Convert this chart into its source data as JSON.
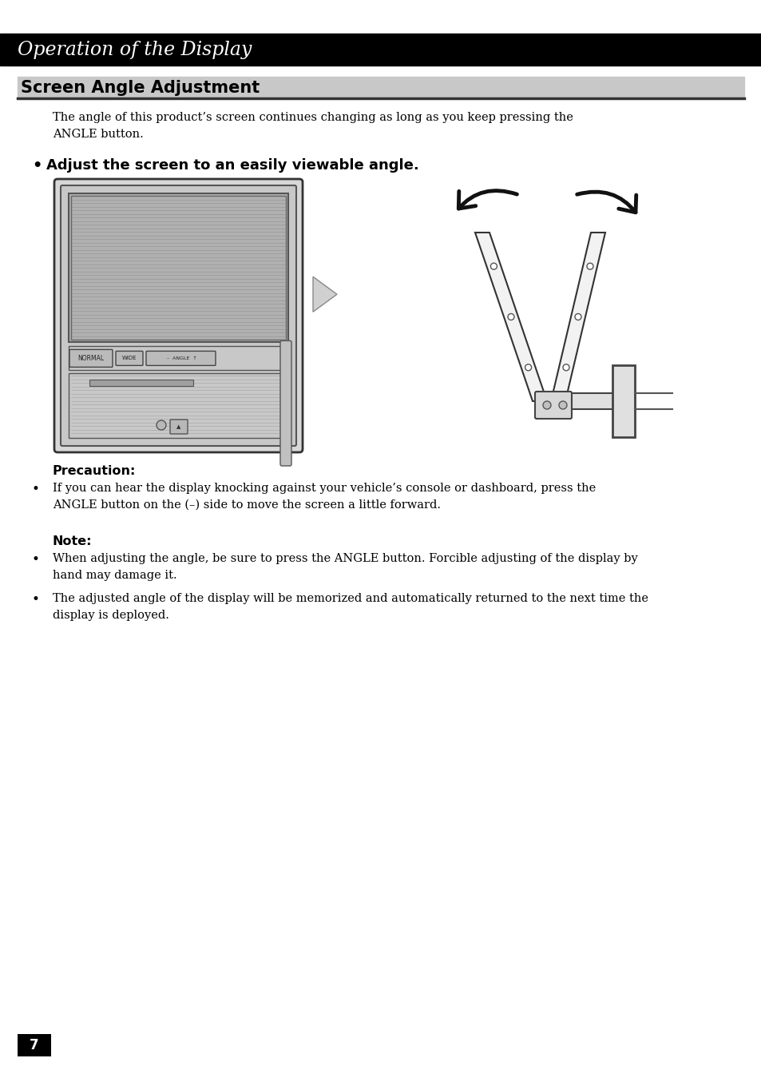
{
  "page_bg": "#ffffff",
  "header_bg": "#000000",
  "header_text": "Operation of the Display",
  "header_text_color": "#ffffff",
  "header_font_size": 17,
  "section_title": "Screen Angle Adjustment",
  "section_title_color": "#000000",
  "section_title_font_size": 15,
  "section_title_bg": "#c8c8c8",
  "body_text_1": "The angle of this product’s screen continues changing as long as you keep pressing the\nANGLE button.",
  "bullet_heading": "Adjust the screen to an easily viewable angle.",
  "precaution_heading": "Precaution:",
  "precaution_text": "If you can hear the display knocking against your vehicle’s console or dashboard, press the\nANGLE button on the (–) side to move the screen a little forward.",
  "note_heading": "Note:",
  "note_text_1": "When adjusting the angle, be sure to press the ANGLE button. Forcible adjusting of the display by\nhand may damage it.",
  "note_text_2": "The adjusted angle of the display will be memorized and automatically returned to the next time the\ndisplay is deployed.",
  "page_number": "7",
  "body_font_size": 10.5,
  "note_font_size": 10.5
}
